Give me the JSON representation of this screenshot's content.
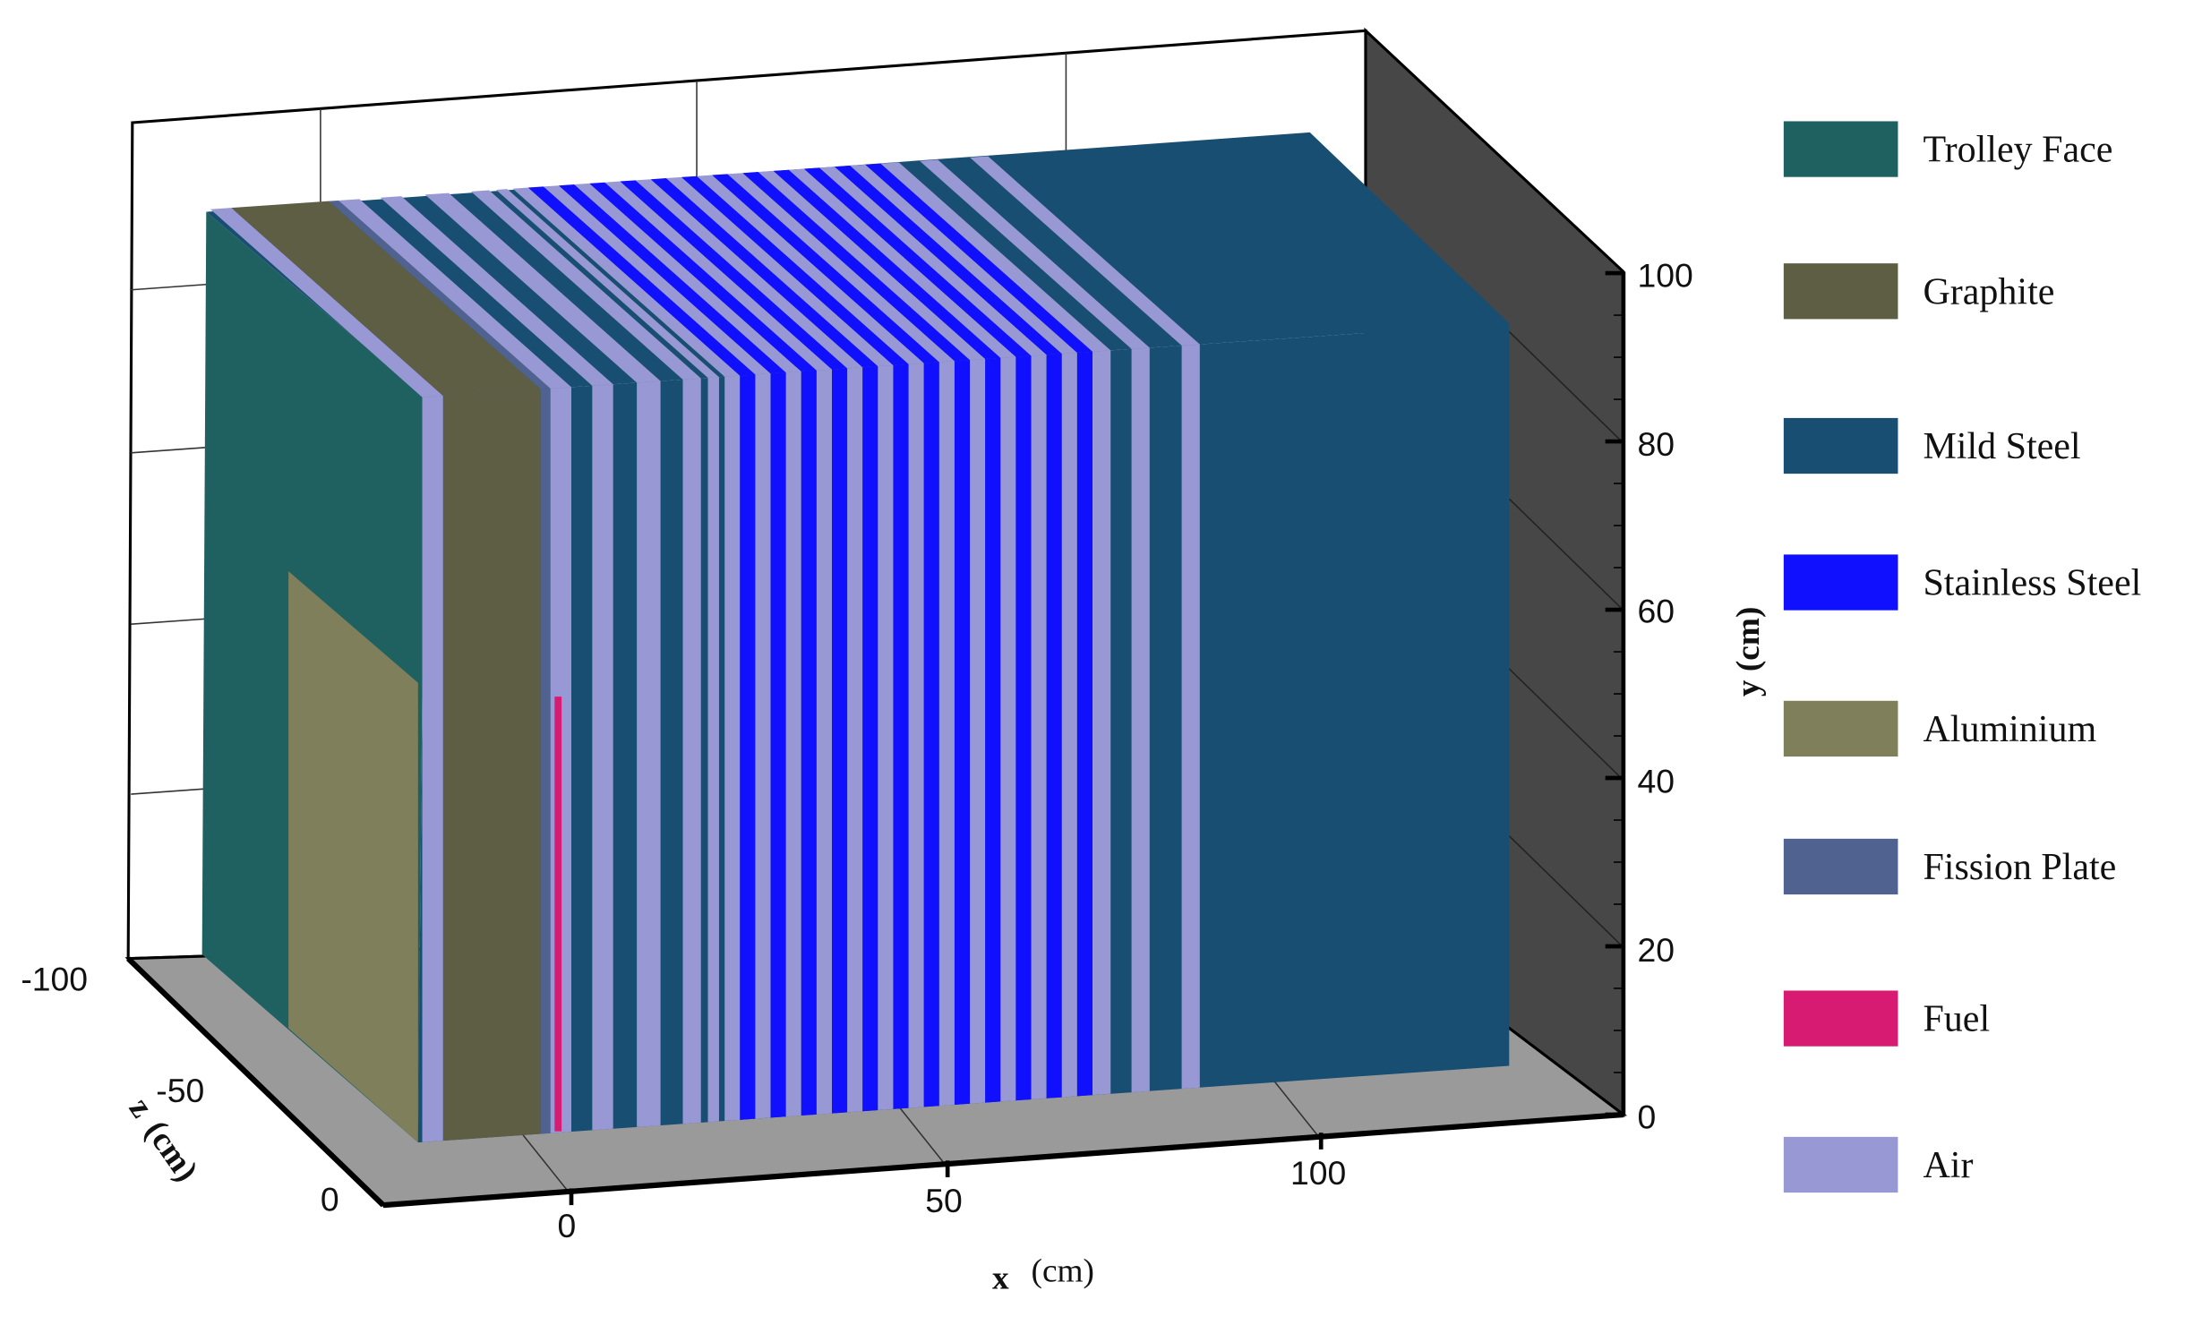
{
  "materials": {
    "trolley_face": {
      "label": "Trolley Face",
      "color": "#1f6060"
    },
    "graphite": {
      "label": "Graphite",
      "color": "#5e5e45"
    },
    "mild_steel": {
      "label": "Mild Steel",
      "color": "#184e72"
    },
    "stainless_steel": {
      "label": "Stainless Steel",
      "color": "#1010ff"
    },
    "aluminium": {
      "label": "Aluminium",
      "color": "#7f7f5b"
    },
    "fission_plate": {
      "label": "Fission Plate",
      "color": "#4f6290"
    },
    "fuel": {
      "label": "Fuel",
      "color": "#d81b72"
    },
    "air": {
      "label": "Air",
      "color": "#9898d4"
    }
  },
  "legend": [
    "trolley_face",
    "graphite",
    "mild_steel",
    "stainless_steel",
    "aluminium",
    "fission_plate",
    "fuel",
    "air"
  ],
  "axes": {
    "x": {
      "title": "x",
      "unit": "(cm)",
      "ticks": [
        "0",
        "50",
        "100"
      ]
    },
    "y": {
      "title": "y",
      "unit": "(cm)",
      "ticks": [
        "0",
        "20",
        "40",
        "60",
        "80",
        "100"
      ]
    },
    "z": {
      "title": "z",
      "unit": "(cm)",
      "ticks": [
        "-100",
        "-50",
        "0"
      ]
    }
  },
  "box_colors": {
    "floor": "#9a9a9a",
    "right_wall": "#474747",
    "back_wall": "#ffffff"
  }
}
